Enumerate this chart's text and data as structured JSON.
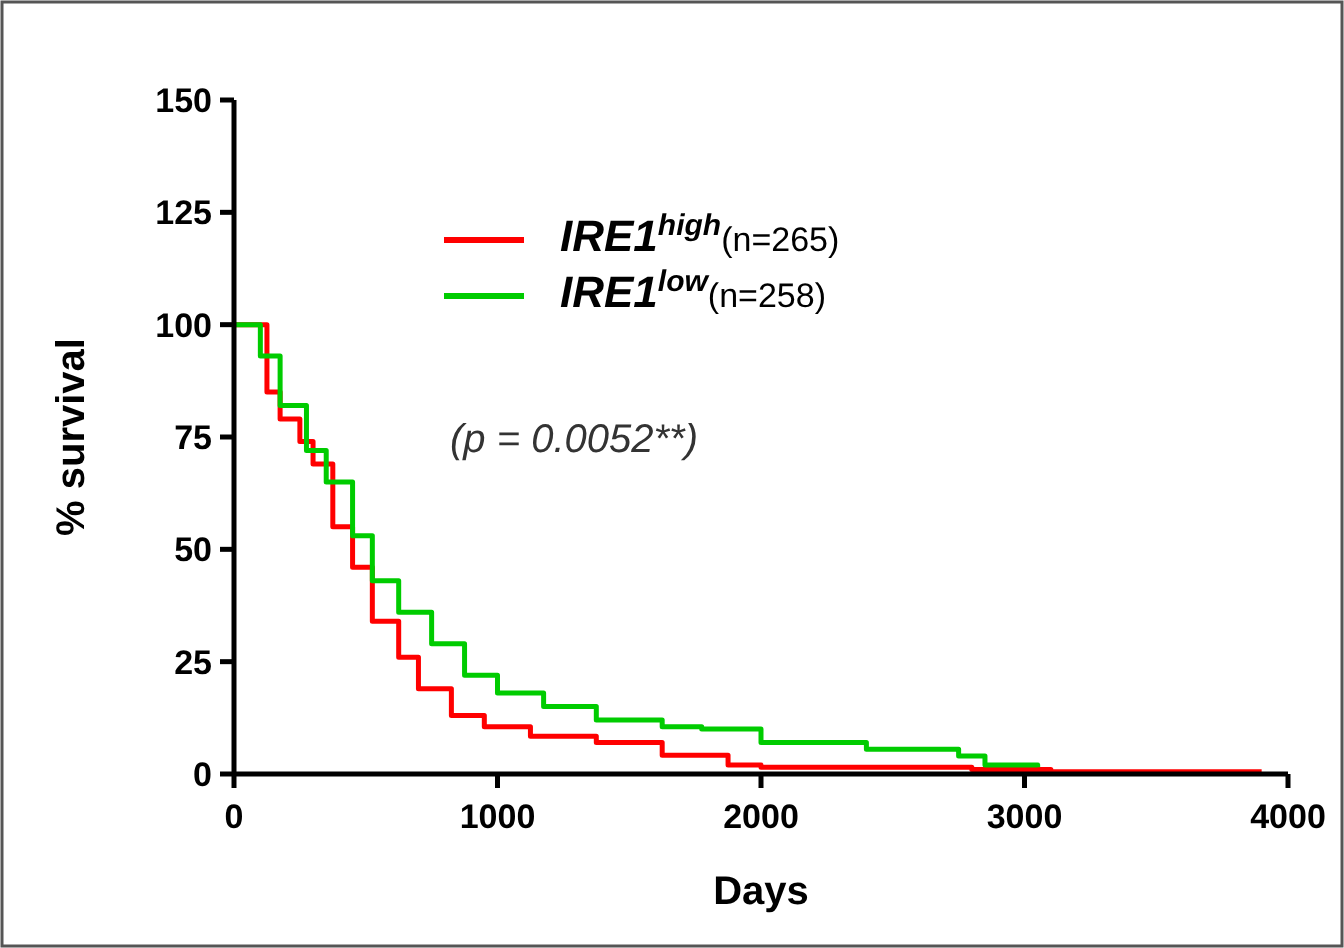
{
  "chart_data": {
    "type": "step",
    "xlabel": "Days",
    "ylabel": "% survival",
    "xlim": [
      0,
      4000
    ],
    "xticks": [
      0,
      1000,
      2000,
      3000,
      4000
    ],
    "ylim": [
      0,
      150
    ],
    "yticks": [
      0,
      25,
      50,
      75,
      100,
      125,
      150
    ],
    "legend": "top",
    "grid": false,
    "annotations": [
      "(p = 0.0052**)"
    ],
    "series": [
      {
        "name": "IRE1$^{high}$(n=265)",
        "color": "#ff0000",
        "x": [
          0,
          125,
          175,
          250,
          300,
          375,
          450,
          525,
          625,
          700,
          825,
          950,
          1125,
          1375,
          1625,
          1875,
          2000,
          2400,
          2800,
          3100,
          3900
        ],
        "values": [
          100,
          85,
          79,
          74,
          69,
          55,
          46,
          34,
          26,
          19,
          13,
          10.5,
          8.4,
          7,
          4.2,
          2,
          1.5,
          1.5,
          1,
          0.5,
          0.5
        ]
      },
      {
        "name": "IRE1$^{low}$(n=258)",
        "color": "#00cc00",
        "x": [
          0,
          100,
          175,
          275,
          350,
          450,
          525,
          625,
          750,
          875,
          1000,
          1175,
          1375,
          1625,
          1775,
          2000,
          2400,
          2750,
          2850,
          3050
        ],
        "values": [
          100,
          93,
          82,
          72,
          65,
          53,
          43,
          36,
          29,
          22,
          18,
          15,
          12,
          10.5,
          10,
          7,
          5.5,
          4,
          2,
          1.5
        ]
      }
    ]
  }
}
